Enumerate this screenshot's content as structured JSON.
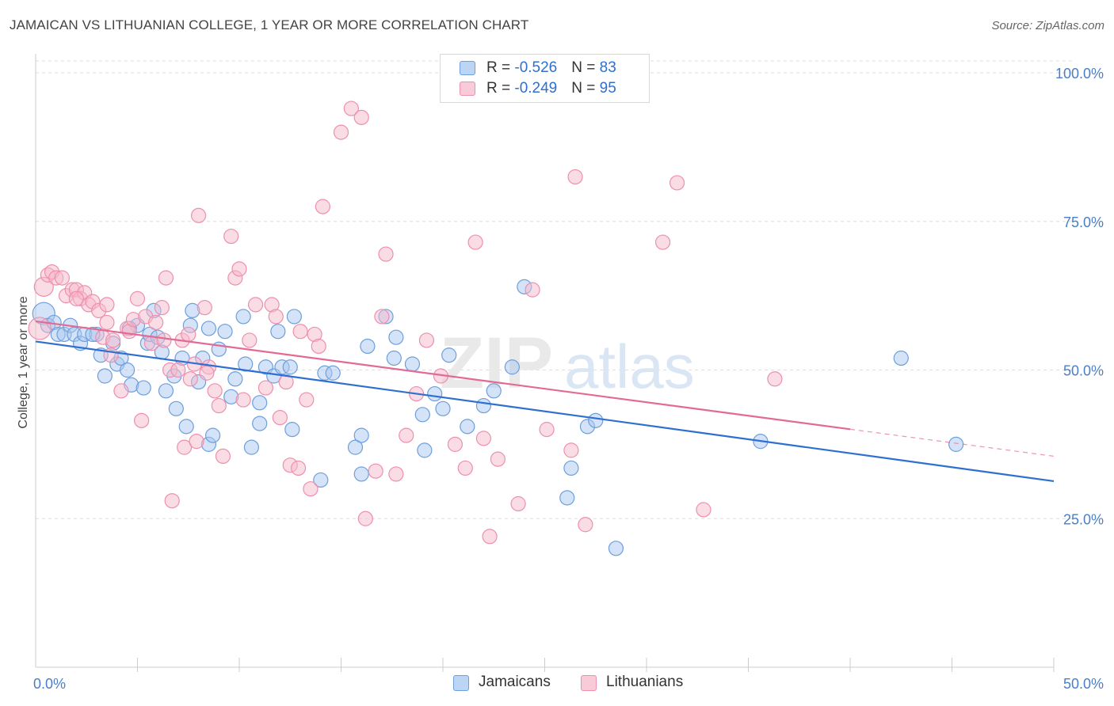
{
  "title": "JAMAICAN VS LITHUANIAN COLLEGE, 1 YEAR OR MORE CORRELATION CHART",
  "source": "Source: ZipAtlas.com",
  "watermark": {
    "part1": "ZIP",
    "part2": "atlas"
  },
  "colors": {
    "blue_fill": "#a9c8f0",
    "blue_stroke": "#6d9fdc",
    "blue_line": "#2e6fd0",
    "pink_fill": "#f6b9cc",
    "pink_stroke": "#ee8fad",
    "pink_line": "#e26a94",
    "axis_label": "#4a7ec8",
    "grid": "#dddddd"
  },
  "legend": {
    "rows": [
      {
        "r_label": "R = ",
        "r_value": "-0.526",
        "n_label": "N = ",
        "n_value": "83"
      },
      {
        "r_label": "R = ",
        "r_value": "-0.249",
        "n_label": "N = ",
        "n_value": "95"
      }
    ]
  },
  "chart_data": {
    "type": "scatter",
    "ylabel": "College, 1 year or more",
    "x_range": [
      0,
      50
    ],
    "y_range": [
      0,
      102
    ],
    "x_tick_labels": [
      {
        "value": 0,
        "label": "0.0%"
      },
      {
        "value": 50,
        "label": "50.0%"
      }
    ],
    "y_tick_labels": [
      {
        "value": 25,
        "label": "25.0%"
      },
      {
        "value": 50,
        "label": "50.0%"
      },
      {
        "value": 75,
        "label": "75.0%"
      },
      {
        "value": 100,
        "label": "100.0%"
      }
    ],
    "x_minor_ticks": [
      5,
      10,
      15,
      20,
      25,
      30,
      35,
      40,
      45,
      50
    ],
    "grid": true,
    "legend_placement": "bottom-center",
    "series": [
      {
        "name": "Jamaicans",
        "trend": {
          "x0": 0,
          "y0": 54.8,
          "x1": 50,
          "y1": 31.3,
          "dash_from": null
        },
        "points": [
          [
            0.4,
            59.5
          ],
          [
            0.6,
            57.5
          ],
          [
            0.9,
            58
          ],
          [
            1.1,
            56
          ],
          [
            1.4,
            56
          ],
          [
            1.7,
            57.5
          ],
          [
            1.9,
            56
          ],
          [
            2.2,
            54.5
          ],
          [
            2.4,
            56
          ],
          [
            3,
            56
          ],
          [
            3.2,
            52.5
          ],
          [
            3.4,
            49
          ],
          [
            3.8,
            54.5
          ],
          [
            4,
            51
          ],
          [
            4.2,
            52
          ],
          [
            4.5,
            50
          ],
          [
            4.7,
            47.5
          ],
          [
            5,
            57.5
          ],
          [
            5.3,
            47
          ],
          [
            5.5,
            54.5
          ],
          [
            5.6,
            56
          ],
          [
            5.8,
            60
          ],
          [
            6.2,
            53
          ],
          [
            6.4,
            46.5
          ],
          [
            6.8,
            49
          ],
          [
            6.9,
            43.5
          ],
          [
            7.2,
            52
          ],
          [
            7.4,
            40.5
          ],
          [
            7.6,
            57.5
          ],
          [
            7.7,
            60
          ],
          [
            8,
            48
          ],
          [
            8.2,
            52
          ],
          [
            8.5,
            37.5
          ],
          [
            8.7,
            39
          ],
          [
            9,
            53.5
          ],
          [
            9.3,
            56.5
          ],
          [
            9.6,
            45.5
          ],
          [
            9.8,
            48.5
          ],
          [
            10.2,
            59
          ],
          [
            10.3,
            51
          ],
          [
            10.6,
            37
          ],
          [
            11,
            44.5
          ],
          [
            11,
            41
          ],
          [
            11.3,
            50.5
          ],
          [
            11.7,
            49
          ],
          [
            11.9,
            56.5
          ],
          [
            12.1,
            50.5
          ],
          [
            12.5,
            50.5
          ],
          [
            12.7,
            59
          ],
          [
            12.6,
            40
          ],
          [
            14,
            31.5
          ],
          [
            14.2,
            49.5
          ],
          [
            14.6,
            49.5
          ],
          [
            15.7,
            37
          ],
          [
            16,
            32.5
          ],
          [
            16.3,
            54
          ],
          [
            17.2,
            59
          ],
          [
            17.6,
            52
          ],
          [
            17.7,
            55.5
          ],
          [
            19,
            42.5
          ],
          [
            19.1,
            36.5
          ],
          [
            19.6,
            46
          ],
          [
            20,
            43.5
          ],
          [
            20.3,
            52.5
          ],
          [
            21.2,
            40.5
          ],
          [
            22.5,
            46.5
          ],
          [
            23.4,
            50.5
          ],
          [
            24,
            64
          ],
          [
            26.1,
            28.5
          ],
          [
            26.3,
            33.5
          ],
          [
            27.1,
            40.5
          ],
          [
            27.5,
            41.5
          ],
          [
            28.5,
            20
          ],
          [
            35.6,
            38
          ],
          [
            42.5,
            52
          ],
          [
            45.2,
            37.5
          ],
          [
            2.8,
            56
          ],
          [
            6,
            55.5
          ],
          [
            8.5,
            57
          ],
          [
            4.6,
            57
          ],
          [
            16,
            39
          ],
          [
            22,
            44
          ],
          [
            18.5,
            51
          ]
        ],
        "sizes": {
          "0": 28
        }
      },
      {
        "name": "Lithuanians",
        "trend": {
          "x0": 0,
          "y0": 58.2,
          "x1": 50,
          "y1": 35.5,
          "dash_from": 40
        },
        "points": [
          [
            0.2,
            57
          ],
          [
            0.4,
            64
          ],
          [
            0.6,
            66
          ],
          [
            0.8,
            66.5
          ],
          [
            1,
            65.5
          ],
          [
            1.3,
            65.5
          ],
          [
            1.5,
            62.5
          ],
          [
            1.8,
            63.5
          ],
          [
            2,
            63.5
          ],
          [
            2.2,
            62
          ],
          [
            2.4,
            63
          ],
          [
            2.6,
            61
          ],
          [
            2.8,
            61.5
          ],
          [
            3.1,
            60
          ],
          [
            3.3,
            55.5
          ],
          [
            3.5,
            61
          ],
          [
            3.7,
            52.5
          ],
          [
            3.8,
            55
          ],
          [
            4.2,
            46.5
          ],
          [
            4.5,
            57
          ],
          [
            4.6,
            56.5
          ],
          [
            4.8,
            58.5
          ],
          [
            5,
            62
          ],
          [
            5.2,
            41.5
          ],
          [
            5.4,
            59
          ],
          [
            5.7,
            54.5
          ],
          [
            5.9,
            58
          ],
          [
            6.2,
            60.5
          ],
          [
            6.4,
            65.5
          ],
          [
            6.6,
            50
          ],
          [
            6.7,
            28
          ],
          [
            7,
            50
          ],
          [
            7.2,
            55
          ],
          [
            7.3,
            37
          ],
          [
            7.5,
            56
          ],
          [
            7.6,
            48.5
          ],
          [
            7.9,
            38
          ],
          [
            8,
            76
          ],
          [
            8.3,
            60.5
          ],
          [
            8.5,
            50.5
          ],
          [
            8.8,
            46.5
          ],
          [
            9,
            44
          ],
          [
            9.2,
            35.5
          ],
          [
            9.6,
            72.5
          ],
          [
            9.8,
            65.5
          ],
          [
            10,
            67
          ],
          [
            10.2,
            45
          ],
          [
            10.5,
            55
          ],
          [
            10.8,
            61
          ],
          [
            11.3,
            47
          ],
          [
            11.6,
            61
          ],
          [
            11.8,
            59
          ],
          [
            12,
            42
          ],
          [
            12.3,
            48
          ],
          [
            12.5,
            34
          ],
          [
            12.9,
            33.5
          ],
          [
            13.3,
            45
          ],
          [
            13.5,
            30
          ],
          [
            13.7,
            56
          ],
          [
            13.9,
            54
          ],
          [
            14.1,
            77.5
          ],
          [
            15,
            90
          ],
          [
            15.5,
            94
          ],
          [
            16,
            92.5
          ],
          [
            16.2,
            25
          ],
          [
            16.7,
            33
          ],
          [
            17,
            59
          ],
          [
            17.2,
            69.5
          ],
          [
            17.7,
            32.5
          ],
          [
            18.2,
            39
          ],
          [
            18.7,
            46
          ],
          [
            19.2,
            55
          ],
          [
            19.9,
            49
          ],
          [
            20.6,
            37.5
          ],
          [
            21.1,
            33.5
          ],
          [
            21.6,
            71.5
          ],
          [
            22,
            38.5
          ],
          [
            22.3,
            22
          ],
          [
            22.7,
            35
          ],
          [
            23.7,
            27.5
          ],
          [
            24.4,
            63.5
          ],
          [
            25.1,
            40
          ],
          [
            26.3,
            36.5
          ],
          [
            26.5,
            82.5
          ],
          [
            27,
            24
          ],
          [
            32.8,
            26.5
          ],
          [
            30.8,
            71.5
          ],
          [
            31.5,
            81.5
          ],
          [
            36.3,
            48.5
          ],
          [
            3.5,
            58
          ],
          [
            2,
            62
          ],
          [
            6.3,
            55
          ],
          [
            8.4,
            49.5
          ],
          [
            13,
            56.5
          ],
          [
            7.8,
            51
          ]
        ],
        "sizes": {
          "0": 28,
          "1": 24
        }
      }
    ]
  }
}
